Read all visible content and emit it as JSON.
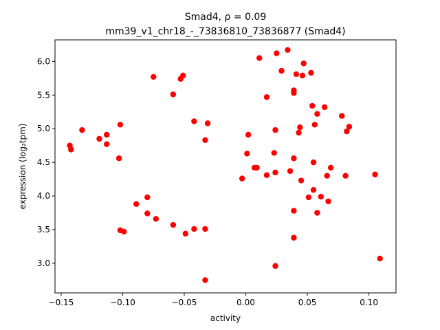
{
  "chart_data": {
    "type": "scatter",
    "title_line1": "Smad4, ρ = 0.09",
    "title_line2": "mm39_v1_chr18_-_73836810_73836877 (Smad4)",
    "xlabel": "activity",
    "ylabel": "expression (log₂tpm)",
    "xlim": [
      -0.155,
      0.122
    ],
    "ylim": [
      2.56,
      6.32
    ],
    "xticks": [
      -0.15,
      -0.1,
      -0.05,
      0.0,
      0.05,
      0.1
    ],
    "xtick_labels": [
      "−0.15",
      "−0.10",
      "−0.05",
      "0.00",
      "0.05",
      "0.10"
    ],
    "yticks": [
      3.0,
      3.5,
      4.0,
      4.5,
      5.0,
      5.5,
      6.0
    ],
    "ytick_labels": [
      "3.0",
      "3.5",
      "4.0",
      "4.5",
      "5.0",
      "5.5",
      "6.0"
    ],
    "marker_color": "#ff0000",
    "grid": false,
    "points": [
      {
        "x": -0.143,
        "y": 4.75
      },
      {
        "x": -0.142,
        "y": 4.69
      },
      {
        "x": -0.133,
        "y": 4.98
      },
      {
        "x": -0.119,
        "y": 4.85
      },
      {
        "x": -0.113,
        "y": 4.91
      },
      {
        "x": -0.113,
        "y": 4.77
      },
      {
        "x": -0.102,
        "y": 5.06
      },
      {
        "x": -0.103,
        "y": 4.56
      },
      {
        "x": -0.102,
        "y": 3.49
      },
      {
        "x": -0.099,
        "y": 3.47
      },
      {
        "x": -0.089,
        "y": 3.88
      },
      {
        "x": -0.08,
        "y": 3.98
      },
      {
        "x": -0.08,
        "y": 3.74
      },
      {
        "x": -0.073,
        "y": 3.66
      },
      {
        "x": -0.075,
        "y": 5.77
      },
      {
        "x": -0.059,
        "y": 5.51
      },
      {
        "x": -0.059,
        "y": 3.57
      },
      {
        "x": -0.053,
        "y": 5.74
      },
      {
        "x": -0.051,
        "y": 5.79
      },
      {
        "x": -0.049,
        "y": 3.44
      },
      {
        "x": -0.042,
        "y": 5.11
      },
      {
        "x": -0.042,
        "y": 3.51
      },
      {
        "x": -0.033,
        "y": 3.51
      },
      {
        "x": -0.033,
        "y": 4.83
      },
      {
        "x": -0.031,
        "y": 5.08
      },
      {
        "x": -0.033,
        "y": 2.75
      },
      {
        "x": -0.003,
        "y": 4.26
      },
      {
        "x": 0.001,
        "y": 4.63
      },
      {
        "x": 0.002,
        "y": 4.91
      },
      {
        "x": 0.007,
        "y": 4.42
      },
      {
        "x": 0.009,
        "y": 4.42
      },
      {
        "x": 0.011,
        "y": 6.05
      },
      {
        "x": 0.017,
        "y": 5.47
      },
      {
        "x": 0.017,
        "y": 4.31
      },
      {
        "x": 0.023,
        "y": 4.64
      },
      {
        "x": 0.024,
        "y": 4.98
      },
      {
        "x": 0.024,
        "y": 4.35
      },
      {
        "x": 0.025,
        "y": 6.12
      },
      {
        "x": 0.024,
        "y": 2.96
      },
      {
        "x": 0.029,
        "y": 5.86
      },
      {
        "x": 0.034,
        "y": 6.17
      },
      {
        "x": 0.036,
        "y": 4.37
      },
      {
        "x": 0.039,
        "y": 5.53
      },
      {
        "x": 0.039,
        "y": 5.57
      },
      {
        "x": 0.039,
        "y": 4.56
      },
      {
        "x": 0.039,
        "y": 3.78
      },
      {
        "x": 0.039,
        "y": 3.38
      },
      {
        "x": 0.041,
        "y": 5.81
      },
      {
        "x": 0.043,
        "y": 4.94
      },
      {
        "x": 0.044,
        "y": 5.02
      },
      {
        "x": 0.045,
        "y": 4.23
      },
      {
        "x": 0.046,
        "y": 5.79
      },
      {
        "x": 0.047,
        "y": 5.97
      },
      {
        "x": 0.051,
        "y": 3.98
      },
      {
        "x": 0.053,
        "y": 5.83
      },
      {
        "x": 0.054,
        "y": 5.34
      },
      {
        "x": 0.055,
        "y": 4.09
      },
      {
        "x": 0.055,
        "y": 4.5
      },
      {
        "x": 0.056,
        "y": 5.06
      },
      {
        "x": 0.058,
        "y": 3.75
      },
      {
        "x": 0.058,
        "y": 5.22
      },
      {
        "x": 0.061,
        "y": 3.99
      },
      {
        "x": 0.064,
        "y": 5.32
      },
      {
        "x": 0.066,
        "y": 4.3
      },
      {
        "x": 0.067,
        "y": 3.92
      },
      {
        "x": 0.069,
        "y": 4.42
      },
      {
        "x": 0.078,
        "y": 5.19
      },
      {
        "x": 0.081,
        "y": 4.3
      },
      {
        "x": 0.082,
        "y": 4.96
      },
      {
        "x": 0.084,
        "y": 5.03
      },
      {
        "x": 0.105,
        "y": 4.32
      },
      {
        "x": 0.109,
        "y": 3.07
      }
    ]
  }
}
